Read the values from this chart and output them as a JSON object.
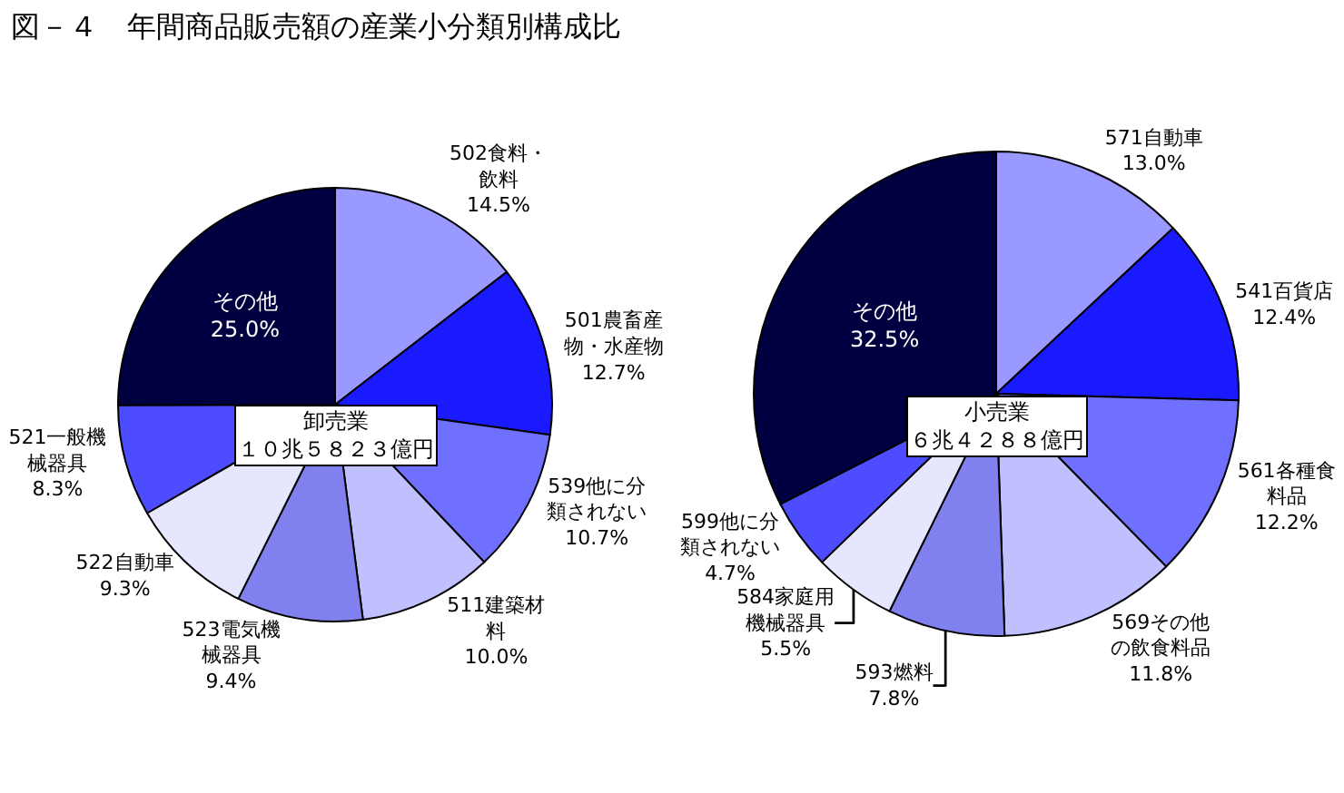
{
  "chart_data": [
    {
      "type": "pie",
      "title": "図－４　年間商品販売額の産業小分類別構成比",
      "annotations": [
        "卸売業",
        "１０兆５８２３億円"
      ],
      "categories": [
        "502食料・飲料",
        "501農畜産物・水産物",
        "539他に分類されない",
        "511建築材料",
        "523電気機械器具",
        "522自動車",
        "521一般機械器具",
        "その他"
      ],
      "values": [
        14.5,
        12.7,
        10.7,
        10.0,
        9.4,
        9.3,
        8.3,
        25.0
      ],
      "value_labels": [
        "14.5%",
        "12.7%",
        "10.7%",
        "10.0%",
        "9.4%",
        "9.3%",
        "8.3%",
        "25.0%"
      ],
      "colors": [
        "#9999ff",
        "#1a1aff",
        "#7070ff",
        "#c0c0ff",
        "#8080ee",
        "#e6e6ff",
        "#4d4dff",
        "#000040"
      ]
    },
    {
      "type": "pie",
      "annotations": [
        "小売業",
        "６兆４２８８億円"
      ],
      "categories": [
        "571自動車",
        "541百貨店",
        "561各種食料品",
        "569その他の飲食料品",
        "593燃料",
        "584家庭用機械器具",
        "599他に分類されない",
        "その他"
      ],
      "values": [
        13.0,
        12.4,
        12.2,
        11.8,
        7.8,
        5.5,
        4.7,
        32.5
      ],
      "value_labels": [
        "13.0%",
        "12.4%",
        "12.2%",
        "11.8%",
        "7.8%",
        "5.5%",
        "4.7%",
        "32.5%"
      ],
      "colors": [
        "#9999ff",
        "#1a1aff",
        "#7070ff",
        "#c0c0ff",
        "#8080ee",
        "#e6e6ff",
        "#4d4dff",
        "#000040"
      ]
    }
  ]
}
